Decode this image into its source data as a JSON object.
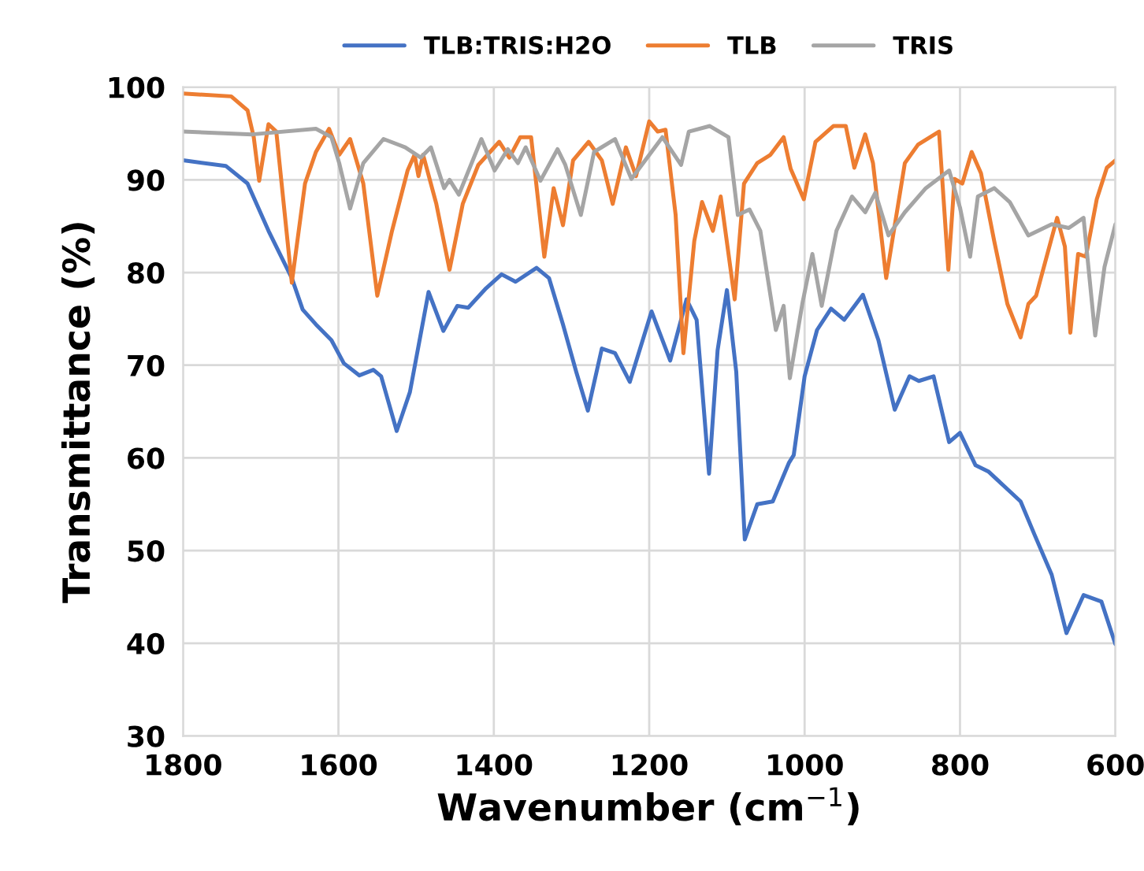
{
  "chart_data": {
    "type": "line",
    "xlabel": "Wavenumber (cm$^{−1}$)",
    "ylabel": "Transmittance (%)",
    "xlim": [
      1800,
      600
    ],
    "xticks": [
      1800,
      1600,
      1400,
      1200,
      1000,
      800,
      600
    ],
    "ylim": [
      30,
      100
    ],
    "yticks": [
      30,
      40,
      50,
      60,
      70,
      80,
      90,
      100
    ],
    "grid": true,
    "legend": "top",
    "marker": "none",
    "line_style": "solid",
    "series": [
      {
        "name": "TLB:TRIS:H2O",
        "color": "#4472c4",
        "x": [
          1800,
          1745,
          1717,
          1690,
          1660,
          1646,
          1629,
          1609,
          1593,
          1573,
          1555,
          1545,
          1525,
          1508,
          1484,
          1465,
          1447,
          1433,
          1410,
          1390,
          1372,
          1345,
          1329,
          1311,
          1294,
          1279,
          1261,
          1244,
          1225,
          1197,
          1173,
          1152,
          1139,
          1123,
          1112,
          1100,
          1088,
          1077,
          1061,
          1041,
          1020,
          1014,
          1000,
          984,
          966,
          949,
          925,
          905,
          884,
          865,
          853,
          834,
          814,
          800,
          780,
          763,
          722,
          704,
          682,
          663,
          641,
          618,
          600
        ],
        "values": [
          92.1,
          91.5,
          89.6,
          84.5,
          79.4,
          76,
          74.4,
          72.7,
          70.2,
          68.9,
          69.5,
          68.8,
          62.9,
          67.1,
          77.9,
          73.7,
          76.4,
          76.2,
          78.3,
          79.8,
          79,
          80.5,
          79.4,
          74.4,
          69.3,
          65.1,
          71.8,
          71.3,
          68.2,
          75.8,
          70.5,
          77.1,
          74.9,
          58.3,
          71.6,
          78.1,
          69.3,
          51.2,
          55,
          55.3,
          59.5,
          60.3,
          68.8,
          73.8,
          76.1,
          74.9,
          77.6,
          72.7,
          65.2,
          68.8,
          68.3,
          68.8,
          61.7,
          62.7,
          59.2,
          58.5,
          55.3,
          51.7,
          47.4,
          41.1,
          45.2,
          44.5,
          39.9
        ]
      },
      {
        "name": "TLB",
        "color": "#ed7d31",
        "x": [
          1800,
          1738,
          1717,
          1709,
          1702,
          1690,
          1680,
          1660,
          1643,
          1629,
          1612,
          1599,
          1585,
          1568,
          1550,
          1531,
          1511,
          1502,
          1497,
          1491,
          1474,
          1457,
          1440,
          1420,
          1393,
          1380,
          1366,
          1352,
          1335,
          1323,
          1311,
          1298,
          1278,
          1261,
          1247,
          1230,
          1217,
          1200,
          1189,
          1179,
          1166,
          1156,
          1142,
          1132,
          1118,
          1108,
          1090,
          1078,
          1061,
          1044,
          1027,
          1018,
          1001,
          986,
          963,
          947,
          936,
          922,
          912,
          895,
          871,
          854,
          827,
          815,
          807,
          797,
          785,
          773,
          756,
          739,
          722,
          712,
          702,
          675,
          665,
          658,
          648,
          638,
          624,
          611,
          600
        ],
        "values": [
          99.3,
          99,
          97.5,
          94.6,
          89.9,
          96,
          95.2,
          78.9,
          89.6,
          93,
          95.5,
          92.7,
          94.4,
          89.6,
          77.5,
          84.5,
          91,
          92.7,
          90.4,
          92.7,
          87.4,
          80.3,
          87.4,
          91.6,
          94.1,
          92.4,
          94.6,
          94.6,
          81.7,
          89.1,
          85.1,
          92.1,
          94.1,
          92.1,
          87.4,
          93.5,
          90.4,
          96.3,
          95.2,
          95.4,
          86.2,
          71.3,
          83.4,
          87.6,
          84.5,
          88.2,
          77.1,
          89.6,
          91.8,
          92.7,
          94.6,
          91.2,
          87.9,
          94.1,
          95.8,
          95.8,
          91.3,
          94.9,
          91.8,
          79.4,
          91.8,
          93.8,
          95.2,
          80.3,
          90.1,
          89.6,
          93,
          90.7,
          83.4,
          76.6,
          73,
          76.6,
          77.5,
          85.9,
          82.8,
          73.5,
          82,
          81.7,
          87.9,
          91.3,
          92.1
        ]
      },
      {
        "name": "TRIS",
        "color": "#a5a5a5",
        "x": [
          1800,
          1711,
          1629,
          1609,
          1599,
          1585,
          1568,
          1542,
          1514,
          1494,
          1481,
          1464,
          1457,
          1445,
          1416,
          1399,
          1382,
          1369,
          1359,
          1340,
          1318,
          1308,
          1288,
          1271,
          1244,
          1223,
          1183,
          1159,
          1149,
          1122,
          1098,
          1086,
          1071,
          1057,
          1037,
          1027,
          1019,
          1003,
          990,
          978,
          959,
          939,
          922,
          909,
          892,
          871,
          844,
          814,
          800,
          787,
          777,
          756,
          736,
          712,
          682,
          660,
          641,
          626,
          614,
          600
        ],
        "values": [
          95.2,
          94.9,
          95.5,
          94.6,
          91.8,
          86.9,
          91.8,
          94.4,
          93.5,
          92.4,
          93.5,
          89.1,
          90,
          88.4,
          94.4,
          91,
          93.3,
          91.8,
          93.5,
          89.9,
          93.3,
          91.6,
          86.2,
          93,
          94.4,
          90.1,
          94.6,
          91.6,
          95.2,
          95.8,
          94.6,
          86.2,
          86.8,
          84.5,
          73.8,
          76.4,
          68.6,
          76.6,
          82,
          76.4,
          84.5,
          88.2,
          86.5,
          88.6,
          84,
          86.5,
          89.1,
          91,
          87,
          81.7,
          88.2,
          89.1,
          87.6,
          84,
          85.2,
          84.8,
          85.9,
          73.2,
          80.6,
          85.2
        ]
      }
    ]
  }
}
